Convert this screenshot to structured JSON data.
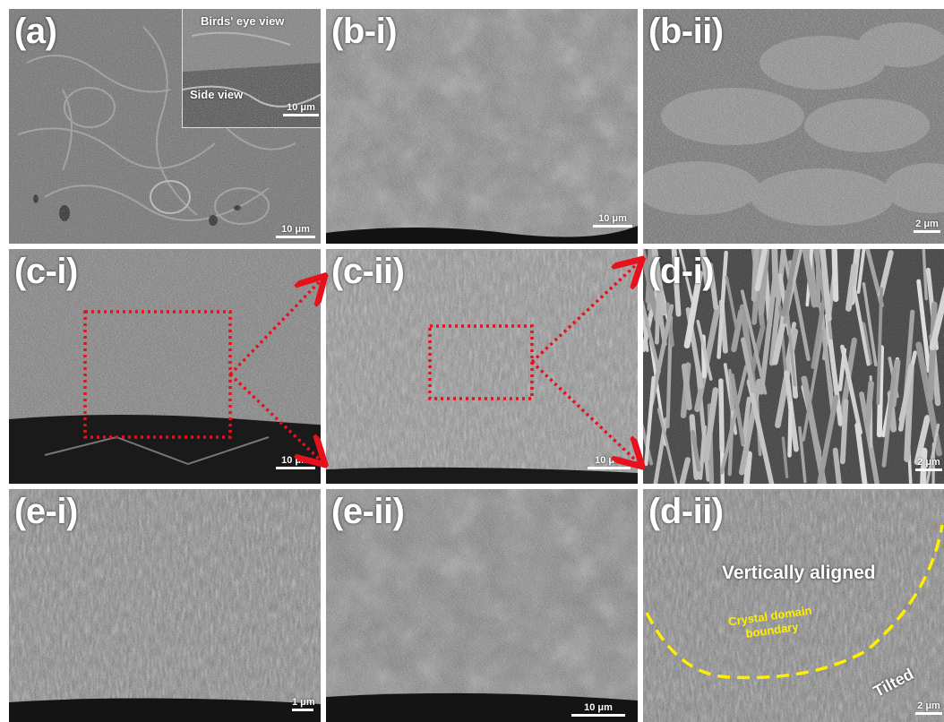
{
  "panels": {
    "a": {
      "label": "(a)",
      "scale": "10 μm",
      "inset": {
        "top_text": "Birds' eye view",
        "side_text": "Side view",
        "scale": "10 μm"
      }
    },
    "bi": {
      "label": "(b-i)",
      "scale": "10 μm"
    },
    "bii": {
      "label": "(b-ii)",
      "scale": "2 μm"
    },
    "ci": {
      "label": "(c-i)",
      "scale": "10 μm"
    },
    "cii": {
      "label": "(c-ii)",
      "scale": "10 μm"
    },
    "di": {
      "label": "(d-i)",
      "scale": "2 μm"
    },
    "ei": {
      "label": "(e-i)",
      "scale": "1 μm"
    },
    "eii": {
      "label": "(e-ii)",
      "scale": "10 μm"
    },
    "dii": {
      "label": "(d-ii)",
      "scale": "2 μm",
      "vertical_text": "Vertically aligned",
      "boundary_text_1": "Crystal domain",
      "boundary_text_2": "boundary",
      "tilted_text": "Tilted"
    }
  },
  "colors": {
    "zoom_box": "#e8101a",
    "boundary_line": "#ffee00",
    "label_text": "#ffffff",
    "background": "#ffffff"
  }
}
